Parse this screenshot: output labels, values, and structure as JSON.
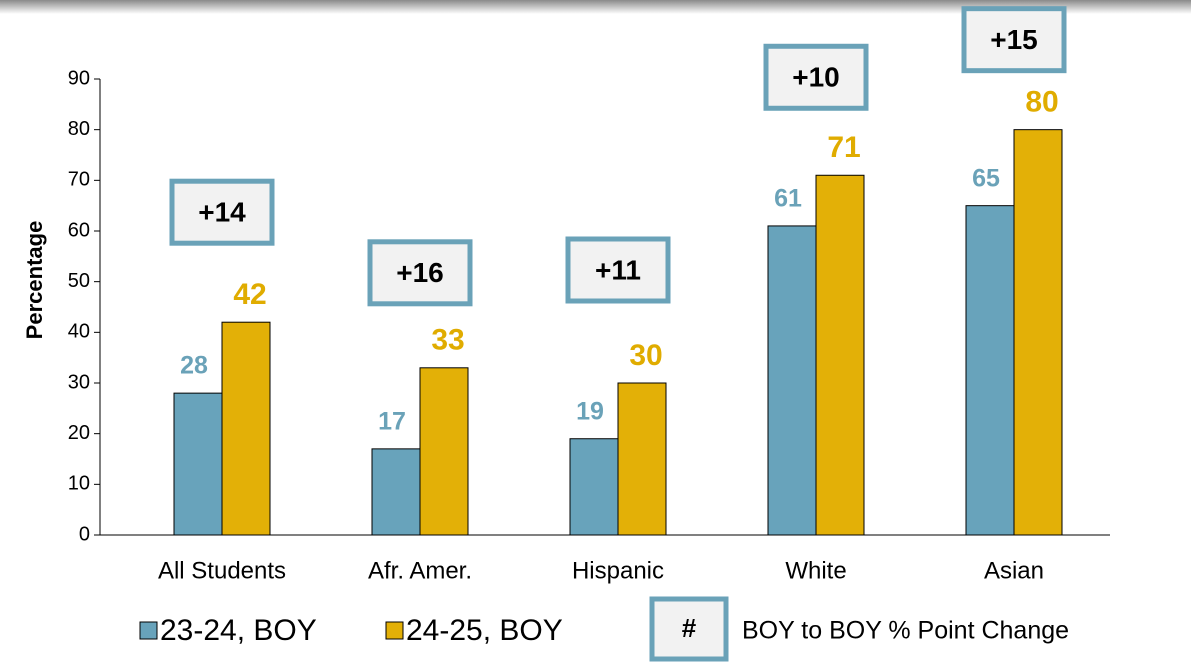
{
  "chart_data": {
    "type": "bar",
    "y_label": "Percentage",
    "categories": [
      "All Students",
      "Afr. Amer.",
      "Hispanic",
      "White",
      "Asian"
    ],
    "series": [
      {
        "name": "23-24, BOY",
        "color": "#68a3bb",
        "label_color": "#6aa2b8",
        "values": [
          28,
          17,
          19,
          61,
          65
        ]
      },
      {
        "name": "24-25, BOY",
        "color": "#e3b007",
        "label_color": "#e0ac00",
        "values": [
          42,
          33,
          30,
          71,
          80
        ]
      }
    ],
    "annotations": [
      "+14",
      "+16",
      "+11",
      "+10",
      "+15"
    ],
    "annotation_legend": {
      "symbol": "#",
      "text": "BOY to BOY % Point Change"
    },
    "ylim": [
      0,
      90
    ],
    "yticks": [
      0,
      10,
      20,
      30,
      40,
      50,
      60,
      70,
      80,
      90
    ]
  }
}
